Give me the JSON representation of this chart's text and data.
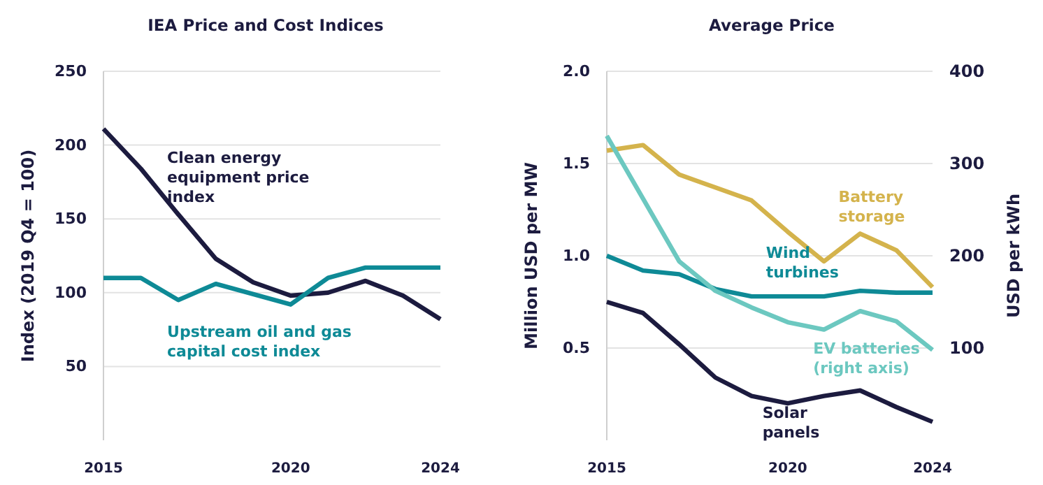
{
  "chart_data": [
    {
      "type": "line",
      "title": "IEA Price and Cost Indices",
      "ylabel": "Index (2019 Q4 = 100)",
      "x": [
        2015,
        2016,
        2017,
        2018,
        2019,
        2020,
        2021,
        2022,
        2023,
        2024
      ],
      "xlim": [
        2015,
        2024
      ],
      "xticks": [
        2015,
        2020,
        2024
      ],
      "ylim": [
        0,
        250
      ],
      "yticks": [
        50,
        100,
        150,
        200,
        250
      ],
      "grid": "y",
      "series": [
        {
          "name": "Clean energy equipment price index",
          "color": "#1c1b3f",
          "values": [
            211,
            184,
            153,
            123,
            107,
            98,
            100,
            108,
            98,
            82
          ]
        },
        {
          "name": "Upstream oil and gas capital cost index",
          "color": "#0e8a96",
          "values": [
            110,
            110,
            95,
            106,
            99,
            92,
            110,
            117,
            117,
            117
          ]
        }
      ]
    },
    {
      "type": "line",
      "title": "Average Price",
      "ylabel": "Million USD per MW",
      "y2label": "USD per kWh",
      "x": [
        2015,
        2016,
        2017,
        2018,
        2019,
        2020,
        2021,
        2022,
        2023,
        2024
      ],
      "xlim": [
        2015,
        2024
      ],
      "xticks": [
        2015,
        2020,
        2024
      ],
      "ylim": [
        0,
        2
      ],
      "yticks": [
        0.5,
        {
          "value": 1,
          "label": "1.0"
        },
        1.5,
        {
          "value": 2,
          "label": "2.0"
        }
      ],
      "y2lim": [
        0,
        400
      ],
      "y2ticks": [
        100,
        200,
        300,
        400
      ],
      "grid": "y",
      "series": [
        {
          "name": "Battery storage",
          "color": "#d4b34c",
          "values": [
            1.57,
            1.6,
            1.44,
            1.37,
            1.3,
            1.13,
            0.97,
            1.12,
            1.03,
            0.83
          ]
        },
        {
          "name": "Wind turbines",
          "color": "#0e8a96",
          "values": [
            1.0,
            0.92,
            0.9,
            0.82,
            0.78,
            0.78,
            0.78,
            0.81,
            0.8,
            0.8
          ]
        },
        {
          "name": "EV batteries (right axis)",
          "color": "#6cc8c0",
          "axis": "y2",
          "values": [
            330,
            262,
            194,
            162,
            144,
            128,
            120,
            140,
            129,
            98
          ]
        },
        {
          "name": "Solar panels",
          "color": "#1c1b3f",
          "values": [
            0.75,
            0.69,
            0.52,
            0.34,
            0.24,
            0.2,
            0.24,
            0.27,
            0.18,
            0.1
          ]
        }
      ]
    }
  ]
}
